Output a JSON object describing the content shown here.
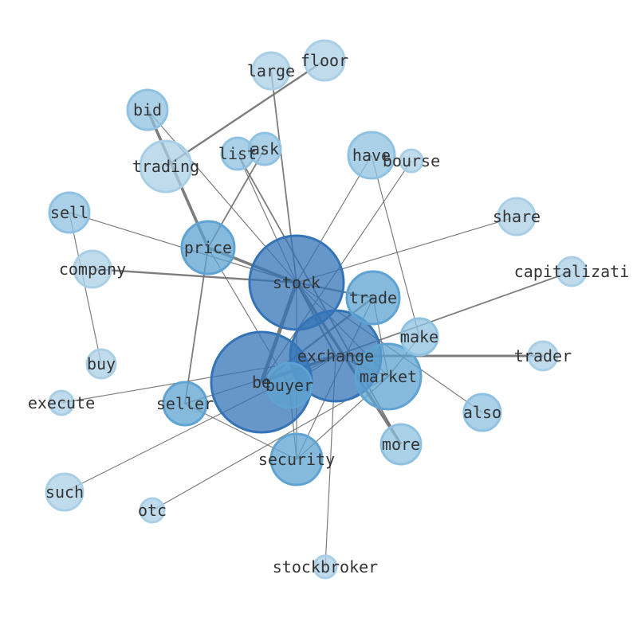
{
  "diagram": {
    "type": "network graph",
    "node_colors": {
      "dark": "#3474b6",
      "medium": "#5ea3d2",
      "light": "#8fc2e2",
      "lighter": "#a9cfe6"
    },
    "edge_color": "#666666",
    "nodes": [
      {
        "id": "stock",
        "label": "stock",
        "tone": "dark"
      },
      {
        "id": "be",
        "label": "be",
        "tone": "dark"
      },
      {
        "id": "exchange",
        "label": "exchange",
        "tone": "dark"
      },
      {
        "id": "market",
        "label": "market",
        "tone": "medium"
      },
      {
        "id": "buyer",
        "label": "buyer",
        "tone": "medium"
      },
      {
        "id": "trade",
        "label": "trade",
        "tone": "medium"
      },
      {
        "id": "price",
        "label": "price",
        "tone": "medium"
      },
      {
        "id": "security",
        "label": "security",
        "tone": "medium"
      },
      {
        "id": "seller",
        "label": "seller",
        "tone": "medium"
      },
      {
        "id": "more",
        "label": "more",
        "tone": "light"
      },
      {
        "id": "make",
        "label": "make",
        "tone": "light"
      },
      {
        "id": "also",
        "label": "also",
        "tone": "light"
      },
      {
        "id": "have",
        "label": "have",
        "tone": "light"
      },
      {
        "id": "bid",
        "label": "bid",
        "tone": "light"
      },
      {
        "id": "trading",
        "label": "trading",
        "tone": "lighter"
      },
      {
        "id": "list",
        "label": "list",
        "tone": "light"
      },
      {
        "id": "ask",
        "label": "ask",
        "tone": "light"
      },
      {
        "id": "large",
        "label": "large",
        "tone": "lighter"
      },
      {
        "id": "floor",
        "label": "floor",
        "tone": "lighter"
      },
      {
        "id": "bourse",
        "label": "bourse",
        "tone": "lighter"
      },
      {
        "id": "share",
        "label": "share",
        "tone": "lighter"
      },
      {
        "id": "capitalizati",
        "label": "capitalizati",
        "tone": "lighter"
      },
      {
        "id": "trader",
        "label": "trader",
        "tone": "lighter"
      },
      {
        "id": "sell",
        "label": "sell",
        "tone": "light"
      },
      {
        "id": "company",
        "label": "company",
        "tone": "lighter"
      },
      {
        "id": "buy",
        "label": "buy",
        "tone": "lighter"
      },
      {
        "id": "execute",
        "label": "execute",
        "tone": "lighter"
      },
      {
        "id": "such",
        "label": "such",
        "tone": "lighter"
      },
      {
        "id": "otc",
        "label": "otc",
        "tone": "lighter"
      },
      {
        "id": "stockbroker",
        "label": "stockbroker",
        "tone": "lighter"
      }
    ],
    "edges": [
      [
        "stock",
        "price",
        3
      ],
      [
        "stock",
        "company",
        2
      ],
      [
        "stock",
        "sell",
        1
      ],
      [
        "stock",
        "trade",
        2
      ],
      [
        "stock",
        "exchange",
        2
      ],
      [
        "stock",
        "market",
        1
      ],
      [
        "stock",
        "more",
        3
      ],
      [
        "stock",
        "also",
        1
      ],
      [
        "stock",
        "be",
        4
      ],
      [
        "stock",
        "security",
        1
      ],
      [
        "stock",
        "list",
        1
      ],
      [
        "stock",
        "bid",
        1
      ],
      [
        "stock",
        "large",
        1.5
      ],
      [
        "stock",
        "have",
        1
      ],
      [
        "stock",
        "share",
        1
      ],
      [
        "bid",
        "price",
        3
      ],
      [
        "trading",
        "floor",
        2
      ],
      [
        "ask",
        "price",
        1.5
      ],
      [
        "list",
        "more",
        1.5
      ],
      [
        "have",
        "make",
        1
      ],
      [
        "bourse",
        "be",
        1
      ],
      [
        "capitalizati",
        "be",
        1.5
      ],
      [
        "trader",
        "exchange",
        2.5
      ],
      [
        "buy",
        "sell",
        1
      ],
      [
        "execute",
        "exchange",
        1
      ],
      [
        "such",
        "exchange",
        1
      ],
      [
        "otc",
        "market",
        1
      ],
      [
        "stockbroker",
        "exchange",
        1
      ],
      [
        "seller",
        "price",
        1.5
      ],
      [
        "seller",
        "security",
        1
      ],
      [
        "seller",
        "exchange",
        1
      ],
      [
        "price",
        "buyer",
        1
      ],
      [
        "trade",
        "be",
        2
      ],
      [
        "trade",
        "security",
        1
      ],
      [
        "trade",
        "market",
        1
      ],
      [
        "exchange",
        "market",
        1
      ],
      [
        "exchange",
        "be",
        3
      ],
      [
        "buyer",
        "exchange",
        1
      ],
      [
        "buyer",
        "security",
        1
      ],
      [
        "security",
        "market",
        1
      ],
      [
        "make",
        "market",
        1
      ]
    ]
  }
}
